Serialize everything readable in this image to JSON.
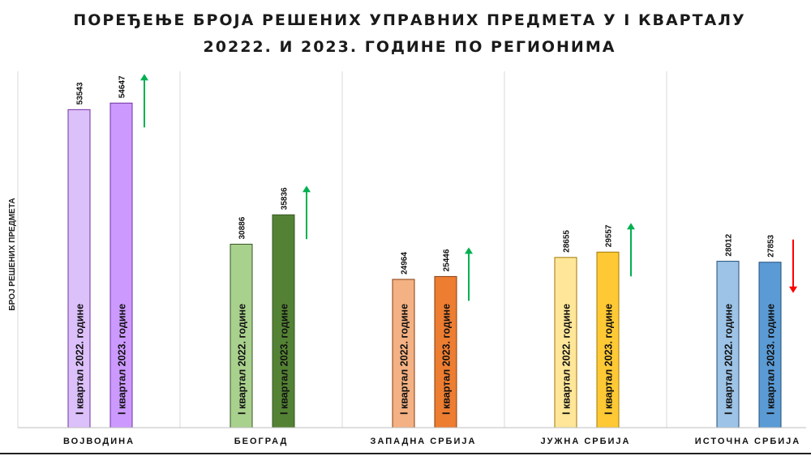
{
  "chart_data": {
    "type": "bar",
    "title_lines": [
      "ПОРЕЂЕЊЕ БРОЈА РЕШЕНИХ УПРАВНИХ ПРЕДМЕТА У I КВАРТАЛУ",
      "20222. И 2023. ГОДИНЕ ПО РЕГИОНИМА"
    ],
    "ylabel": "БРОЈ РЕШЕНИХ ПРЕДМЕТА",
    "ylim": [
      0,
      60000
    ],
    "categories": [
      "ВОЈВОДИНА",
      "БЕОГРАД",
      "ЗАПАДНА СРБИЈА",
      "ЈУЖНА СРБИЈА",
      "ИСТОЧНА СРБИЈА"
    ],
    "series": [
      {
        "name": "I квартал 2022. године",
        "values": [
          53543,
          30886,
          24964,
          28655,
          28012
        ]
      },
      {
        "name": "I квартал 2023. године",
        "values": [
          54647,
          35836,
          25446,
          29557,
          27853
        ]
      }
    ],
    "trend": [
      "up",
      "up",
      "up",
      "up",
      "down"
    ],
    "colors": {
      "series_2022": [
        "#dcc0fa",
        "#a9d18e",
        "#f4b183",
        "#ffe699",
        "#9dc3e6"
      ],
      "series_2023": [
        "#cc99ff",
        "#548235",
        "#ed7d31",
        "#ffc935",
        "#5b9bd5"
      ],
      "bar_border": [
        "#7030a0",
        "#375623",
        "#843c0c",
        "#a07700",
        "#1f4e79"
      ],
      "arrow_up": "#00b050",
      "arrow_down": "#ff0000",
      "divider": "#d9d9d9"
    },
    "grid": false,
    "legend": "none"
  }
}
